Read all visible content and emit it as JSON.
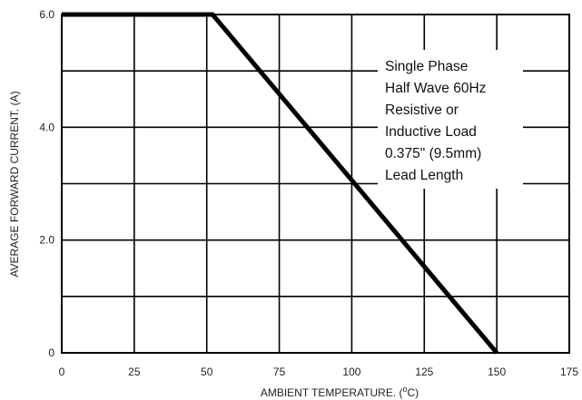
{
  "chart_data": {
    "type": "line",
    "title": "",
    "xlabel_prefix": "AMBIENT TEMPERATURE. (",
    "xlabel_sup": "o",
    "xlabel_suffix": "C)",
    "ylabel": "AVERAGE FORWARD CURRENT. (A)",
    "xlim": [
      0,
      175
    ],
    "ylim": [
      0,
      6.0
    ],
    "x_ticks": [
      0,
      25,
      50,
      75,
      100,
      125,
      150,
      175
    ],
    "x_tick_labels": [
      "0",
      "25",
      "50",
      "75",
      "100",
      "125",
      "150",
      "175"
    ],
    "y_ticks": [
      0,
      2.0,
      4.0,
      6.0
    ],
    "y_tick_labels": [
      "0",
      "2.0",
      "4.0",
      "6.0"
    ],
    "y_grid": [
      0,
      1.0,
      2.0,
      3.0,
      4.0,
      5.0,
      6.0
    ],
    "grid": true,
    "series": [
      {
        "x": [
          0,
          52,
          150
        ],
        "y": [
          6.0,
          6.0,
          0
        ],
        "color": "#000000"
      }
    ],
    "annotation": [
      "Single Phase",
      "Half Wave 60Hz",
      "Resistive or",
      "Inductive Load",
      "0.375\" (9.5mm)",
      "Lead Length"
    ]
  }
}
